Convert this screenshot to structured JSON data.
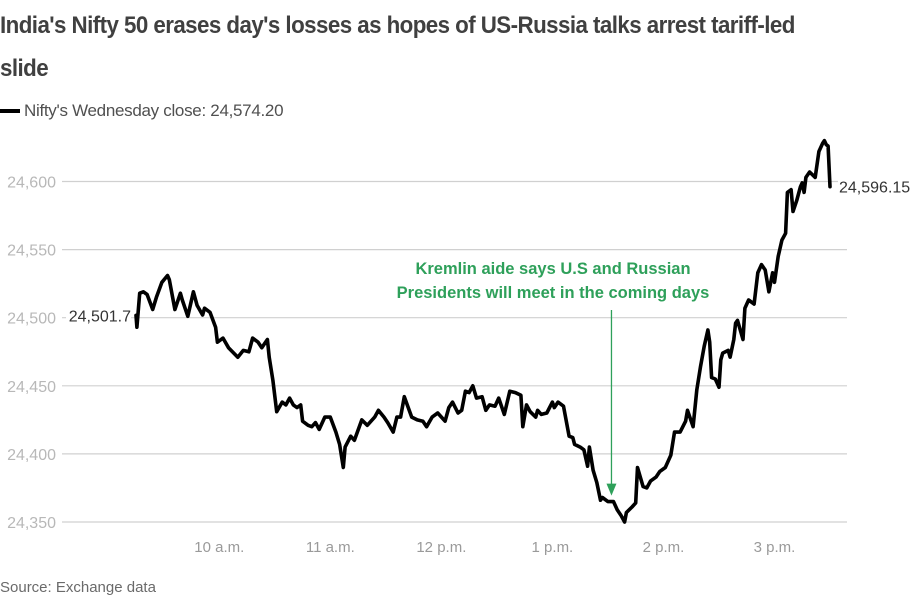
{
  "header": {
    "title": "India's Nifty 50 erases day's losses as hopes of US-Russia talks arrest tariff-led slide"
  },
  "legend": {
    "label": "Nifty's Wednesday close: 24,574.20"
  },
  "footer": {
    "source": "Source: Exchange data"
  },
  "colors": {
    "line": "#000000",
    "grid": "#d0d0d0",
    "annotation": "#2ea05a"
  },
  "chart_data": {
    "type": "line",
    "title": "India's Nifty 50 erases day's losses as hopes of US-Russia talks arrest tariff-led slide",
    "xlabel": "",
    "ylabel": "",
    "x_unit": "minutes after 9:15 a.m.",
    "xlim": [
      0,
      375
    ],
    "ylim": [
      24350,
      24600
    ],
    "grid": true,
    "legend_position": "top-left",
    "y_ticks": [
      24350,
      24400,
      24450,
      24500,
      24550,
      24600
    ],
    "y_tick_labels": [
      "24,350",
      "24,400",
      "24,450",
      "24,500",
      "24,550",
      "24,600"
    ],
    "x_ticks": [
      45,
      105,
      165,
      225,
      285,
      345
    ],
    "x_tick_labels": [
      "10 a.m.",
      "11 a.m.",
      "12 p.m.",
      "1 p.m.",
      "2 p.m.",
      "3 p.m."
    ],
    "series": [
      {
        "name": "Nifty 50",
        "x": [
          0,
          0.5,
          2,
          4,
          6,
          9,
          11,
          14,
          17,
          18,
          21,
          24,
          25,
          28,
          31,
          33,
          36,
          37,
          40,
          43,
          44,
          47,
          50,
          55,
          58,
          61,
          63,
          66,
          68,
          71,
          72,
          74,
          76,
          79,
          81,
          83,
          85,
          87,
          89,
          90,
          93,
          95,
          97,
          99,
          102,
          105,
          108,
          110,
          112,
          113,
          116,
          118,
          122,
          125,
          129,
          131,
          134,
          136,
          139,
          141,
          143,
          145,
          149,
          152,
          155,
          157,
          160,
          163,
          167,
          169,
          171,
          174,
          176,
          178,
          180,
          182,
          184,
          187,
          189,
          191,
          194,
          196,
          199,
          202,
          205,
          208,
          209,
          211,
          213,
          216,
          217,
          219,
          222,
          225,
          226,
          228,
          231,
          234,
          236,
          237,
          240,
          242,
          244,
          245,
          247,
          249,
          251,
          252,
          255,
          258,
          260,
          262,
          264,
          265,
          268,
          270,
          271,
          274,
          276,
          278,
          281,
          283,
          286,
          289,
          291,
          294,
          297,
          298,
          301,
          303,
          305,
          307,
          309,
          310,
          311,
          313,
          315,
          316,
          317,
          320,
          321,
          323,
          324,
          325,
          328,
          329,
          331,
          334,
          336,
          338,
          340,
          342,
          344,
          345,
          347,
          349,
          351,
          352,
          354,
          355,
          357,
          359,
          360,
          361,
          362,
          364,
          367,
          369,
          371,
          372,
          373,
          374,
          375
        ],
        "values": [
          24501.7,
          24493,
          24518,
          24519,
          24517,
          24506,
          24515,
          24526,
          24531,
          24528,
          24506,
          24518,
          24513,
          24501,
          24519,
          24509,
          24502,
          24507,
          24504,
          24493,
          24482,
          24485,
          24478,
          24471,
          24476,
          24475,
          24485,
          24482,
          24478,
          24484,
          24471,
          24454,
          24431,
          24438,
          24436,
          24441,
          24436,
          24434,
          24436,
          24424,
          24421,
          24420,
          24423,
          24418,
          24427,
          24427,
          24416,
          24407,
          24390,
          24405,
          24413,
          24410,
          24425,
          24421,
          24427,
          24432,
          24427,
          24423,
          24416,
          24427,
          24427,
          24442,
          24427,
          24425,
          24424,
          24420,
          24427,
          24430,
          24424,
          24434,
          24438,
          24430,
          24432,
          24446,
          24445,
          24450,
          24441,
          24442,
          24432,
          24436,
          24435,
          24441,
          24429,
          24446,
          24445,
          24443,
          24420,
          24436,
          24431,
          24427,
          24432,
          24429,
          24430,
          24438,
          24434,
          24438,
          24435,
          24413,
          24412,
          24407,
          24405,
          24403,
          24391,
          24405,
          24388,
          24379,
          24366,
          24368,
          24365,
          24365,
          24359,
          24355,
          24350,
          24357,
          24361,
          24364,
          24390,
          24376,
          24375,
          24380,
          24383,
          24387,
          24390,
          24399,
          24416,
          24416,
          24424,
          24432,
          24420,
          24447,
          24464,
          24479,
          24491,
          24482,
          24456,
          24455,
          24449,
          24469,
          24474,
          24476,
          24471,
          24484,
          24496,
          24498,
          24484,
          24507,
          24513,
          24510,
          24533,
          24539,
          24535,
          24519,
          24533,
          24526,
          24545,
          24557,
          24562,
          24592,
          24594,
          24578,
          24586,
          24596,
          24599,
          24592,
          24603,
          24607,
          24603,
          24622,
          24628,
          24630,
          24627,
          24626,
          24596.15
        ]
      }
    ],
    "annotations": [
      {
        "type": "end-label",
        "text": "24,501.7",
        "x": 0,
        "value": 24501.7
      },
      {
        "type": "end-label",
        "text": "24,596.15",
        "x": 375,
        "value": 24596.15
      },
      {
        "type": "arrow-callout",
        "lines": [
          "Kremlin aide says U.S and Russian",
          "Presidents will meet in the coming days"
        ],
        "x": 258,
        "value": 24365
      }
    ]
  }
}
